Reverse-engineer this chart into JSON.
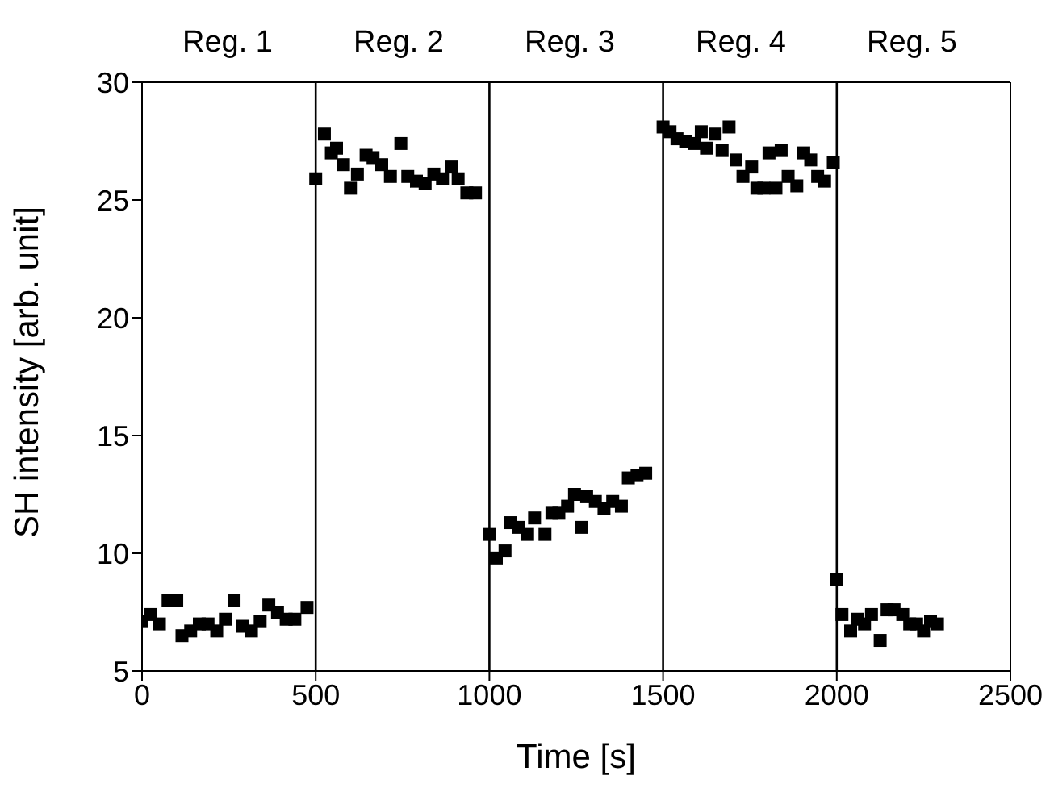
{
  "chart_data": {
    "type": "scatter",
    "xlabel": "Time [s]",
    "ylabel": "SH intensity [arb. unit]",
    "x": [
      0,
      25,
      50,
      75,
      100,
      115,
      140,
      165,
      190,
      215,
      240,
      265,
      290,
      315,
      340,
      365,
      390,
      415,
      440,
      475,
      500,
      525,
      545,
      560,
      580,
      600,
      620,
      645,
      665,
      690,
      715,
      745,
      765,
      790,
      815,
      840,
      865,
      890,
      910,
      935,
      960,
      1000,
      1020,
      1045,
      1060,
      1085,
      1110,
      1130,
      1160,
      1180,
      1200,
      1225,
      1245,
      1265,
      1280,
      1305,
      1330,
      1355,
      1380,
      1400,
      1425,
      1450,
      1500,
      1520,
      1540,
      1565,
      1590,
      1610,
      1625,
      1650,
      1670,
      1690,
      1710,
      1730,
      1755,
      1770,
      1790,
      1805,
      1825,
      1840,
      1860,
      1885,
      1905,
      1925,
      1945,
      1965,
      1990,
      2000,
      2015,
      2040,
      2060,
      2080,
      2100,
      2125,
      2145,
      2165,
      2190,
      2210,
      2230,
      2250,
      2270,
      2290
    ],
    "series": [
      {
        "color": "#000000",
        "values": [
          7.1,
          7.4,
          7.0,
          8.0,
          8.0,
          6.5,
          6.7,
          7.0,
          7.0,
          6.7,
          7.2,
          8.0,
          6.9,
          6.7,
          7.1,
          7.8,
          7.5,
          7.2,
          7.2,
          7.7,
          25.9,
          27.8,
          27.0,
          27.2,
          26.5,
          25.5,
          26.1,
          26.9,
          26.8,
          26.5,
          26.0,
          27.4,
          26.0,
          25.8,
          25.7,
          26.1,
          25.9,
          26.4,
          25.9,
          25.3,
          25.3,
          10.8,
          9.8,
          10.1,
          11.3,
          11.1,
          10.8,
          11.5,
          10.8,
          11.7,
          11.7,
          12.0,
          12.5,
          11.1,
          12.4,
          12.2,
          11.9,
          12.2,
          12.0,
          13.2,
          13.3,
          13.4,
          28.1,
          27.9,
          27.6,
          27.5,
          27.4,
          27.9,
          27.2,
          27.8,
          27.1,
          28.1,
          26.7,
          26.0,
          26.4,
          25.5,
          25.5,
          27.0,
          25.5,
          27.1,
          26.0,
          25.6,
          27.0,
          26.7,
          26.0,
          25.8,
          26.6,
          8.9,
          7.4,
          6.7,
          7.2,
          7.0,
          7.4,
          6.3,
          7.6,
          7.6,
          7.4,
          7.0,
          7.0,
          6.7,
          7.1,
          7.0
        ]
      }
    ],
    "xlim": [
      0,
      2500
    ],
    "xticks": [
      0,
      500,
      1000,
      1500,
      2000,
      2500
    ],
    "ylim": [
      5,
      30
    ],
    "yticks": [
      5,
      10,
      15,
      20,
      25,
      30
    ],
    "marker": "square",
    "ref_lines": [
      {
        "axis": "x",
        "value": 500,
        "color": "#000000"
      },
      {
        "axis": "x",
        "value": 1000,
        "color": "#000000"
      },
      {
        "axis": "x",
        "value": 1500,
        "color": "#000000"
      },
      {
        "axis": "x",
        "value": 2000,
        "color": "#000000"
      }
    ],
    "annotations": [
      "Reg. 1",
      "Reg. 2",
      "Reg. 3",
      "Reg. 4",
      "Reg. 5"
    ]
  }
}
